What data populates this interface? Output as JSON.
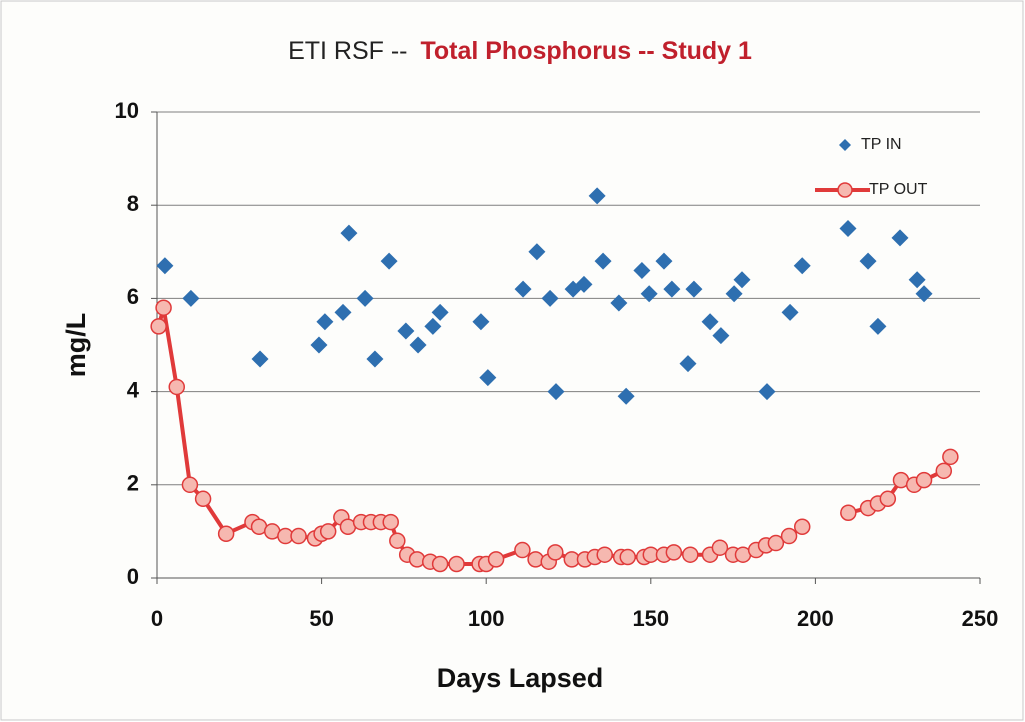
{
  "chart_data": {
    "type": "scatter-line",
    "title": [
      "ETI RSF --",
      "Total Phosphorus -- Study 1"
    ],
    "title_colors": [
      "#222222",
      "#c0202c"
    ],
    "x_label": "Days Lapsed",
    "y_label": "mg/L",
    "xlim": [
      0,
      250
    ],
    "xticks": [
      0,
      50,
      100,
      150,
      200,
      250
    ],
    "ylim": [
      0,
      10
    ],
    "yticks": [
      0,
      2,
      4,
      6,
      8,
      10
    ],
    "grid": true,
    "legend": "upper right",
    "series": [
      {
        "name": "TP IN",
        "color": "#2e6fb0",
        "mode": "markers",
        "x": [
          2.4,
          10.3,
          31.3,
          49.2,
          51,
          56.5,
          58.3,
          63.2,
          66.2,
          70.5,
          75.6,
          79.3,
          83.8,
          86,
          98.4,
          100.5,
          111.2,
          115.4,
          119.4,
          121.2,
          126.4,
          129.7,
          133.7,
          135.5,
          140.3,
          142.5,
          147.3,
          149.5,
          154,
          156.4,
          161.3,
          163.1,
          168,
          171.3,
          175.3,
          177.7,
          185.3,
          192.3,
          196,
          209.9,
          216,
          219,
          225.7,
          230.9,
          233
        ],
        "values": [
          6.7,
          6.0,
          4.7,
          5.0,
          5.5,
          5.7,
          7.4,
          6.0,
          4.7,
          6.8,
          5.3,
          5.0,
          5.4,
          5.7,
          5.5,
          4.3,
          6.2,
          7.0,
          6.0,
          4.0,
          6.2,
          6.3,
          8.2,
          6.8,
          5.9,
          3.9,
          6.6,
          6.1,
          6.8,
          6.2,
          4.6,
          6.2,
          5.5,
          5.2,
          6.1,
          6.4,
          4.0,
          5.7,
          6.7,
          7.5,
          6.8,
          5.4,
          7.3,
          6.4,
          6.1
        ]
      },
      {
        "name": "TP OUT",
        "color": "#e03a3a",
        "mode": "lines+markers",
        "x": [
          0.5,
          2,
          6,
          10,
          14,
          21,
          29,
          31,
          35,
          39,
          43,
          48,
          50,
          52,
          56,
          58,
          62,
          65,
          68,
          71,
          73,
          76,
          79,
          83,
          86,
          91,
          98,
          100,
          103,
          111,
          115,
          119,
          121,
          126,
          130,
          133,
          136,
          141,
          143,
          148,
          150,
          154,
          157,
          162,
          168,
          171,
          175,
          178,
          182,
          185,
          188,
          192,
          196,
          203,
          210,
          216,
          219,
          222,
          226,
          230,
          233,
          239,
          241
        ],
        "values": [
          5.4,
          5.8,
          4.1,
          2.0,
          1.7,
          0.95,
          1.2,
          1.1,
          1.0,
          0.9,
          0.9,
          0.85,
          0.95,
          1.0,
          1.3,
          1.1,
          1.2,
          1.2,
          1.2,
          1.2,
          0.8,
          0.5,
          0.4,
          0.35,
          0.3,
          0.3,
          0.3,
          0.3,
          0.4,
          0.6,
          0.4,
          0.35,
          0.55,
          0.4,
          0.4,
          0.45,
          0.5,
          0.45,
          0.45,
          0.45,
          0.5,
          0.5,
          0.55,
          0.5,
          0.5,
          0.65,
          0.5,
          0.5,
          0.6,
          0.7,
          0.75,
          0.9,
          1.1,
          null,
          1.4,
          1.5,
          1.6,
          1.7,
          2.1,
          2.0,
          2.1,
          2.3,
          2.6
        ]
      }
    ]
  }
}
